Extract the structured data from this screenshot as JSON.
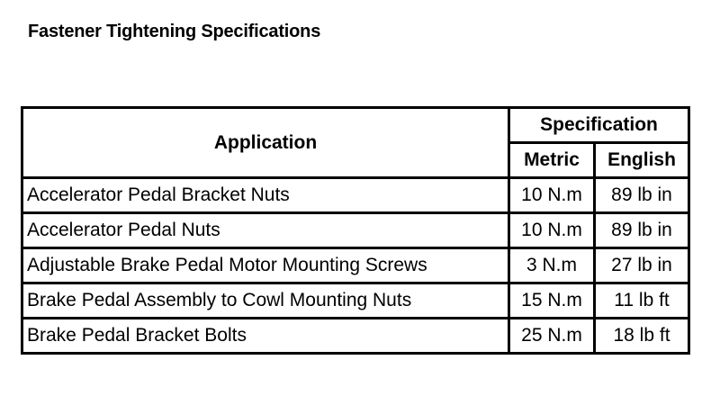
{
  "title": "Fastener Tightening Specifications",
  "table": {
    "headers": {
      "application": "Application",
      "specification": "Specification",
      "metric": "Metric",
      "english": "English"
    },
    "rows": [
      {
        "application": "Accelerator Pedal Bracket Nuts",
        "metric": "10 N.m",
        "english": "89 lb in"
      },
      {
        "application": "Accelerator Pedal Nuts",
        "metric": "10 N.m",
        "english": "89 lb in"
      },
      {
        "application": "Adjustable Brake Pedal Motor Mounting Screws",
        "metric": "3 N.m",
        "english": "27 lb in"
      },
      {
        "application": "Brake Pedal Assembly to Cowl Mounting Nuts",
        "metric": "15 N.m",
        "english": "11 lb ft"
      },
      {
        "application": "Brake Pedal Bracket Bolts",
        "metric": "25 N.m",
        "english": "18 lb ft"
      }
    ]
  }
}
